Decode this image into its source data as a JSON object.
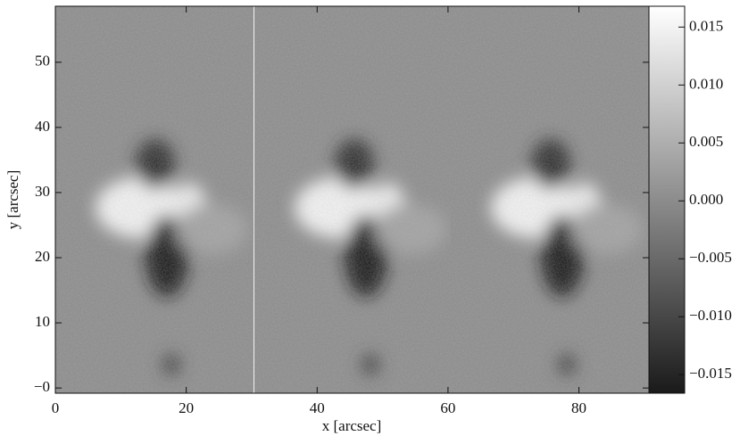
{
  "chart_data": {
    "type": "image",
    "xlabel": "x [arcsec]",
    "ylabel": "y [arcsec]",
    "xlim": [
      0,
      90.7
    ],
    "ylim": [
      -0.8,
      58.6
    ],
    "xticks": [
      0,
      20,
      40,
      60,
      80
    ],
    "yticks": [
      {
        "value": 0,
        "label": "−0"
      },
      10,
      20,
      30,
      40,
      50
    ],
    "colorbar": {
      "lim": [
        -0.0166,
        0.0168
      ],
      "colors": [
        "#1a1a1a",
        "#ffffff"
      ],
      "ticks": [
        {
          "value": 0.015,
          "label": "0.015"
        },
        {
          "value": 0.01,
          "label": "0.010"
        },
        {
          "value": 0.005,
          "label": "0.005"
        },
        {
          "value": 0,
          "label": "0.000"
        },
        {
          "value": -0.005,
          "label": "−0.005"
        },
        {
          "value": -0.01,
          "label": "−0.010"
        },
        {
          "value": -0.015,
          "label": "−0.015"
        }
      ]
    }
  }
}
